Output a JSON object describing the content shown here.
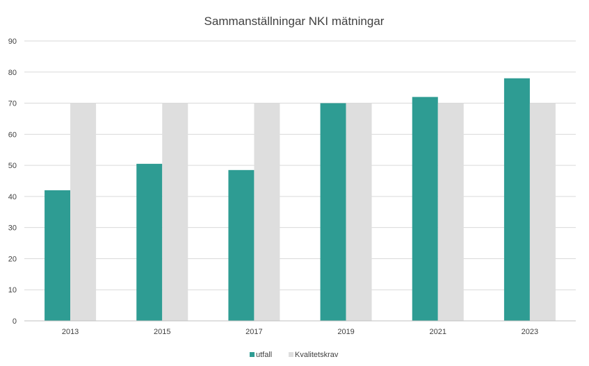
{
  "chart_data": {
    "type": "bar",
    "title": "Sammanställningar NKI mätningar",
    "xlabel": "",
    "ylabel": "",
    "categories": [
      "2013",
      "2015",
      "2017",
      "2019",
      "2021",
      "2023"
    ],
    "series": [
      {
        "name": "utfall",
        "values": [
          42,
          50.5,
          48.5,
          70,
          72,
          78
        ],
        "color": "#2e9c93"
      },
      {
        "name": "Kvalitetskrav",
        "values": [
          70,
          70,
          70,
          70,
          70,
          70
        ],
        "color": "#dedede"
      }
    ],
    "ylim": [
      0,
      90
    ],
    "yticks": [
      "0",
      "10",
      "20",
      "30",
      "40",
      "50",
      "60",
      "70",
      "80",
      "90"
    ],
    "grid": true,
    "legend_position": "bottom"
  }
}
